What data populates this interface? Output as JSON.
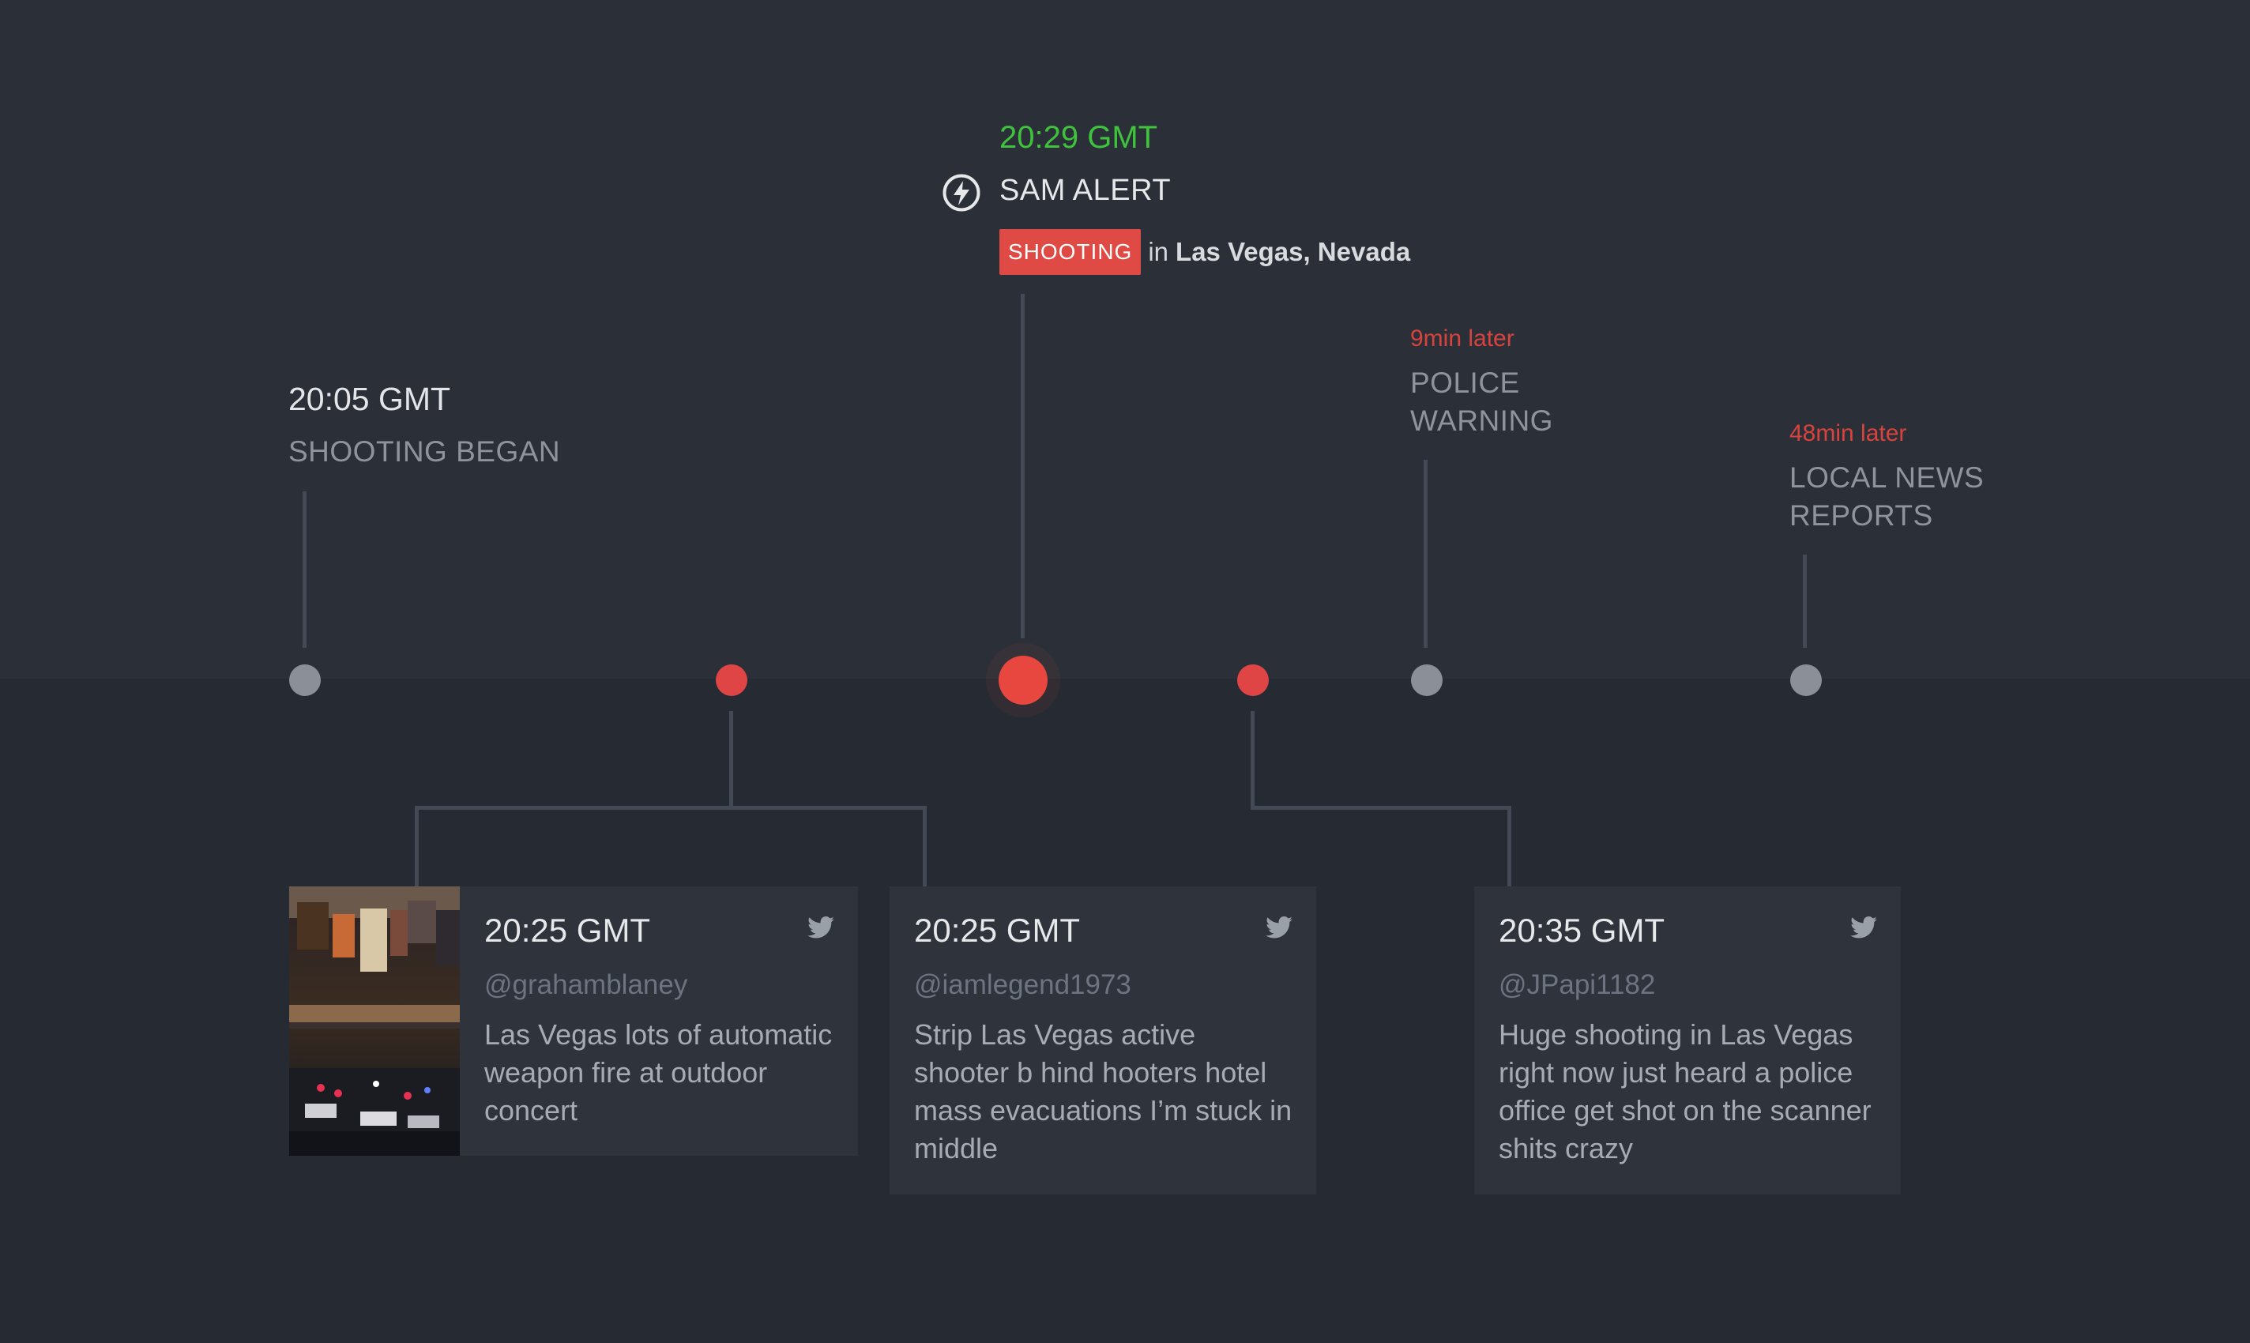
{
  "timeline": {
    "events": [
      {
        "time": "20:05 GMT",
        "label": "SHOOTING BEGAN"
      },
      {
        "later": "9min later",
        "label_line1": "POLICE",
        "label_line2": "WARNING"
      },
      {
        "later": "48min later",
        "label_line1": "LOCAL NEWS",
        "label_line2": "REPORTS"
      }
    ],
    "alert": {
      "time": "20:29 GMT",
      "title": "SAM ALERT",
      "tag": "SHOOTING",
      "preposition": "in",
      "location": "Las Vegas, Nevada"
    }
  },
  "tweets": [
    {
      "time": "20:25 GMT",
      "handle": "@grahamblaney",
      "text": "Las Vegas lots of automatic weapon fire at outdoor concert",
      "icon": "twitter-icon",
      "has_photo": true
    },
    {
      "time": "20:25 GMT",
      "handle": "@iamlegend1973",
      "text": "Strip Las Vegas active shooter b hind hooters hotel mass evacuations I’m stuck in middle",
      "icon": "twitter-icon"
    },
    {
      "time": "20:35 GMT",
      "handle": "@JPapi1182",
      "text": "Huge shooting in Las Vegas right now just heard a police office get shot on the scanner shits crazy",
      "icon": "twitter-icon"
    }
  ],
  "colors": {
    "background_top": "#2b3038",
    "background_bottom": "#262b33",
    "alert_green": "#3fc33c",
    "accent_red": "#e04545",
    "dot_gray": "#8a8f98",
    "card": "#2e333c"
  }
}
